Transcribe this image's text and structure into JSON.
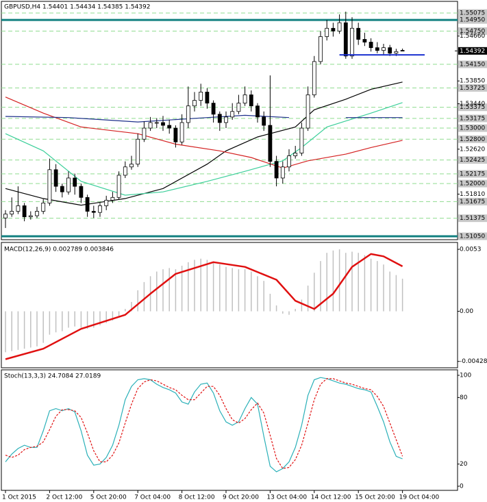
{
  "chart_data": [
    {
      "type": "candlestick",
      "title": "GBPUSD,H4  1.54401 1.54434 1.54385 1.54392",
      "open": [
        1.5138,
        1.5145,
        1.515,
        1.516,
        1.514,
        1.5142,
        1.515,
        1.5165,
        1.5225,
        1.5195,
        1.5185,
        1.521,
        1.5195,
        1.5175,
        1.515,
        1.5148,
        1.516,
        1.517,
        1.5175,
        1.5215,
        1.523,
        1.5235,
        1.528,
        1.53,
        1.531,
        1.531,
        1.5305,
        1.53,
        1.5275,
        1.531,
        1.534,
        1.535,
        1.5365,
        1.5345,
        1.5325,
        1.531,
        1.532,
        1.533,
        1.5345,
        1.536,
        1.534,
        1.532,
        1.5305,
        1.524,
        1.521,
        1.523,
        1.525,
        1.5255,
        1.53,
        1.536,
        1.542,
        1.5465,
        1.548,
        1.5475,
        1.549,
        1.543,
        1.548,
        1.546,
        1.5455,
        1.5445,
        1.544,
        1.5445,
        1.5435,
        1.54401
      ],
      "high": [
        1.5152,
        1.5175,
        1.5195,
        1.5165,
        1.515,
        1.5158,
        1.5172,
        1.5245,
        1.5235,
        1.52,
        1.5222,
        1.5218,
        1.52,
        1.518,
        1.516,
        1.5165,
        1.5178,
        1.5185,
        1.5222,
        1.524,
        1.525,
        1.529,
        1.5312,
        1.532,
        1.5318,
        1.5322,
        1.5315,
        1.5305,
        1.5325,
        1.5375,
        1.5365,
        1.538,
        1.5372,
        1.535,
        1.533,
        1.533,
        1.5345,
        1.536,
        1.5375,
        1.5368,
        1.5345,
        1.533,
        1.5395,
        1.525,
        1.524,
        1.5262,
        1.5268,
        1.531,
        1.5375,
        1.543,
        1.5475,
        1.5495,
        1.549,
        1.5505,
        1.551,
        1.55,
        1.549,
        1.5472,
        1.5462,
        1.5455,
        1.5452,
        1.545,
        1.5443,
        1.54434
      ],
      "low": [
        1.512,
        1.514,
        1.5145,
        1.5132,
        1.5135,
        1.5138,
        1.5145,
        1.516,
        1.5185,
        1.5175,
        1.518,
        1.518,
        1.5165,
        1.514,
        1.5138,
        1.514,
        1.5152,
        1.5165,
        1.5172,
        1.521,
        1.5225,
        1.523,
        1.5275,
        1.5295,
        1.53,
        1.5295,
        1.529,
        1.5265,
        1.527,
        1.53,
        1.533,
        1.534,
        1.5335,
        1.531,
        1.5295,
        1.53,
        1.5315,
        1.5325,
        1.534,
        1.533,
        1.531,
        1.5295,
        1.523,
        1.5195,
        1.52,
        1.5222,
        1.5245,
        1.525,
        1.5295,
        1.5355,
        1.5415,
        1.5458,
        1.5465,
        1.547,
        1.5425,
        1.5425,
        1.545,
        1.5448,
        1.5438,
        1.5435,
        1.5432,
        1.543,
        1.543,
        1.54385
      ],
      "close": [
        1.5145,
        1.515,
        1.516,
        1.514,
        1.5142,
        1.515,
        1.5165,
        1.5225,
        1.5195,
        1.5185,
        1.521,
        1.5195,
        1.5175,
        1.515,
        1.5148,
        1.516,
        1.517,
        1.5175,
        1.5215,
        1.523,
        1.5235,
        1.528,
        1.53,
        1.531,
        1.531,
        1.5305,
        1.53,
        1.5275,
        1.531,
        1.534,
        1.535,
        1.5365,
        1.5345,
        1.5325,
        1.531,
        1.532,
        1.533,
        1.5345,
        1.536,
        1.534,
        1.532,
        1.5305,
        1.524,
        1.521,
        1.523,
        1.525,
        1.5255,
        1.53,
        1.536,
        1.542,
        1.5465,
        1.548,
        1.5475,
        1.549,
        1.543,
        1.548,
        1.546,
        1.5455,
        1.5445,
        1.544,
        1.5445,
        1.5435,
        1.5438,
        1.54392
      ],
      "ylim": [
        1.50988,
        1.55285
      ],
      "yticks": [
        {
          "value": 1.5466,
          "label": "1.54660"
        },
        {
          "value": 1.5385,
          "label": "1.53850"
        },
        {
          "value": 1.5344,
          "label": "1.53440"
        },
        {
          "value": 1.5262,
          "label": "1.52620"
        },
        {
          "value": 1.5181,
          "label": "1.51810"
        }
      ],
      "levels": [
        {
          "value": 1.55075,
          "label": "1.55075"
        },
        {
          "value": 1.5475,
          "label": "1.54750"
        },
        {
          "value": 1.5415,
          "label": "1.54150"
        },
        {
          "value": 1.53725,
          "label": "1.53725"
        },
        {
          "value": 1.53375,
          "label": "1.53375"
        },
        {
          "value": 1.53175,
          "label": "1.53175"
        },
        {
          "value": 1.53,
          "label": "1.53000"
        },
        {
          "value": 1.528,
          "label": "1.52800"
        },
        {
          "value": 1.52425,
          "label": "1.52425"
        },
        {
          "value": 1.52175,
          "label": "1.52175"
        },
        {
          "value": 1.52,
          "label": "1.52000"
        },
        {
          "value": 1.51675,
          "label": "1.51675"
        },
        {
          "value": 1.51375,
          "label": "1.51375"
        }
      ],
      "level_color": "#8fdc8f",
      "lines": [
        {
          "value": 1.5495,
          "label": "1.54950"
        },
        {
          "value": 1.5105,
          "label": "1.51050"
        }
      ],
      "line_color": "#128080",
      "last_price": {
        "value": 1.54392,
        "label": "1.54392"
      },
      "trend_line": {
        "value": 1.5432,
        "start": 53,
        "color": "#1a2fd0"
      },
      "moving_averages": [
        {
          "color": "#000000",
          "x": [
            0,
            6,
            12,
            19,
            25,
            32,
            35,
            40,
            46,
            49,
            54,
            58,
            63
          ],
          "values": [
            1.5191,
            1.5173,
            1.5161,
            1.5173,
            1.5191,
            1.5235,
            1.5259,
            1.5284,
            1.5302,
            1.5333,
            1.5352,
            1.537,
            1.5383
          ]
        },
        {
          "color": "#3ccf9a",
          "x": [
            0,
            6,
            12,
            19,
            25,
            32,
            38,
            44,
            47,
            51,
            58,
            63
          ],
          "values": [
            1.529,
            1.5259,
            1.5204,
            1.5179,
            1.5185,
            1.5204,
            1.5222,
            1.5241,
            1.5265,
            1.5302,
            1.5327,
            1.5346
          ]
        },
        {
          "color": "#d42020",
          "x": [
            0,
            6,
            12,
            21,
            27,
            34,
            39,
            44,
            48,
            54,
            58,
            63
          ],
          "values": [
            1.5356,
            1.5327,
            1.5302,
            1.529,
            1.5271,
            1.5259,
            1.5247,
            1.5228,
            1.5241,
            1.5253,
            1.5265,
            1.5278
          ]
        },
        {
          "color": "#1c2f8a",
          "x": [
            0,
            10,
            21,
            32,
            38,
            45,
            46,
            54,
            63
          ],
          "values": [
            1.5321,
            1.5319,
            1.5311,
            1.5319,
            1.5323,
            1.5319,
            null,
            1.5319,
            1.5319
          ]
        }
      ]
    },
    {
      "type": "macd",
      "title": "MACD(12,26,9) 0.002789 0.003846",
      "values": [
        -0.0035,
        -0.0034,
        -0.0033,
        -0.0032,
        -0.0031,
        -0.003,
        -0.0027,
        -0.002,
        -0.0018,
        -0.0017,
        -0.0014,
        -0.0013,
        -0.0014,
        -0.0015,
        -0.0014,
        -0.0012,
        -0.001,
        -0.0008,
        -0.0004,
        0.0002,
        0.0008,
        0.0018,
        0.0025,
        0.003,
        0.0034,
        0.0036,
        0.0037,
        0.0036,
        0.0039,
        0.0042,
        0.0044,
        0.0045,
        0.0044,
        0.0042,
        0.004,
        0.0038,
        0.0037,
        0.0036,
        0.0036,
        0.0034,
        0.003,
        0.0026,
        0.0015,
        0.0005,
        -0.0002,
        -0.0003,
        0.0002,
        0.001,
        0.0022,
        0.0033,
        0.0043,
        0.005,
        0.0052,
        0.0053,
        0.005,
        0.0051,
        0.005,
        0.0048,
        0.0045,
        0.0043,
        0.004,
        0.0034,
        0.0031,
        0.002789
      ],
      "color": "#c0c0c0",
      "signal": {
        "color": "#e01010",
        "x": [
          0,
          6,
          12,
          19,
          23,
          27,
          33,
          38,
          43,
          46,
          49,
          52,
          55,
          58,
          60,
          63
        ],
        "values": [
          -0.0041,
          -0.0032,
          -0.0015,
          -0.0003,
          0.0015,
          0.0032,
          0.0042,
          0.0038,
          0.0027,
          0.0009,
          0.0002,
          0.0015,
          0.0038,
          0.0049,
          0.0047,
          0.003846
        ]
      },
      "ylim": [
        -0.00483,
        0.00589
      ],
      "yticks": [
        0.0053,
        {
          "value": 0,
          "label": "0.00"
        },
        -0.004285
      ]
    },
    {
      "type": "stochastic",
      "title": "Stoch(13,3,3) 24.7084 27.0189",
      "main": {
        "color": "#2ab0b8",
        "values": [
          22,
          29,
          34,
          37,
          35,
          35,
          50,
          68,
          70,
          68,
          70,
          67,
          50,
          28,
          19,
          20,
          26,
          37,
          55,
          78,
          90,
          96,
          97,
          96,
          92,
          89,
          87,
          84,
          76,
          74,
          85,
          92,
          93,
          84,
          68,
          58,
          55,
          58,
          70,
          80,
          74,
          45,
          18,
          13,
          16,
          22,
          35,
          55,
          82,
          96,
          98,
          97,
          95,
          93,
          92,
          90,
          88,
          87,
          85,
          72,
          58,
          40,
          27,
          24.7084
        ]
      },
      "signal": {
        "color": "#e01010",
        "values": [
          28,
          26,
          28,
          33,
          35,
          36,
          40,
          51,
          63,
          69,
          69,
          68,
          62,
          48,
          32,
          22,
          22,
          28,
          39,
          57,
          74,
          88,
          94,
          96,
          95,
          92,
          89,
          87,
          82,
          78,
          78,
          84,
          90,
          90,
          82,
          70,
          60,
          57,
          61,
          69,
          75,
          66,
          46,
          25,
          16,
          17,
          24,
          37,
          57,
          78,
          92,
          97,
          97,
          95,
          93,
          92,
          90,
          88,
          87,
          81,
          72,
          57,
          42,
          27.0189
        ]
      },
      "ylim": [
        0,
        100
      ],
      "yticks": [
        100,
        80,
        20,
        0
      ],
      "x_labels": [
        {
          "index": 0,
          "label": "1 Oct 2015"
        },
        {
          "index": 7,
          "label": "2 Oct 12:00"
        },
        {
          "index": 14,
          "label": "5 Oct 20:00"
        },
        {
          "index": 21,
          "label": "7 Oct 04:00"
        },
        {
          "index": 28,
          "label": "8 Oct 12:00"
        },
        {
          "index": 35,
          "label": "9 Oct 20:00"
        },
        {
          "index": 42,
          "label": "13 Oct 04:00"
        },
        {
          "index": 49,
          "label": "14 Oct 12:00"
        },
        {
          "index": 56,
          "label": "15 Oct 20:00"
        },
        {
          "index": 63,
          "label": "19 Oct 04:00"
        }
      ]
    }
  ]
}
